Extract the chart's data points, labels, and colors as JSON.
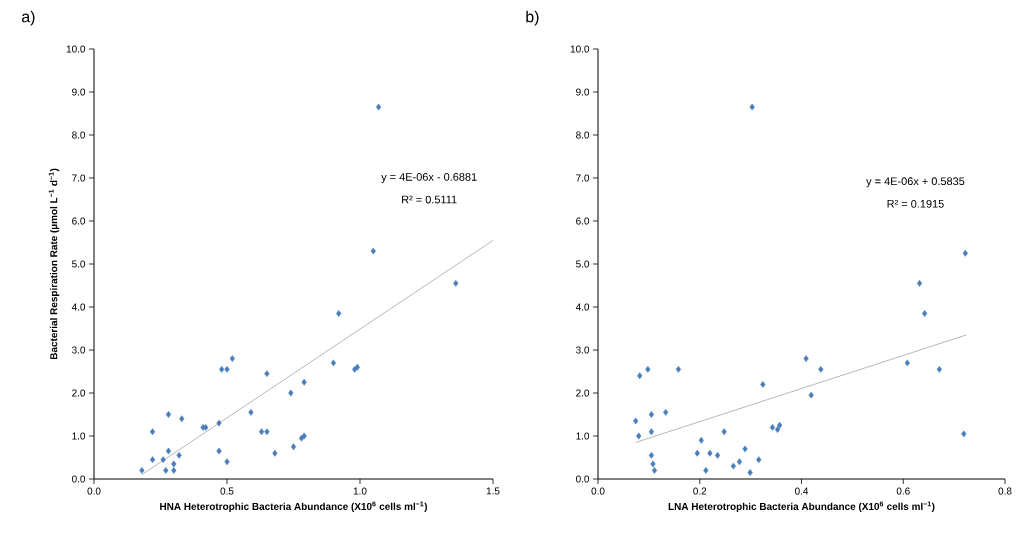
{
  "chart_data": [
    {
      "type": "scatter",
      "title": "a)",
      "xlabel": "HNA Heterotrophic Bacteria Abundance (X10$^{6}$ cells ml$^{−1}$)",
      "ylabel": "Bacterial Respiration Rate (µmol L$^{−1}$ d$^{−1}$)",
      "marker": "diamond",
      "xlim": [
        0,
        1.5
      ],
      "ylim": [
        0,
        10
      ],
      "xticks": [
        {
          "value": 0,
          "label": "0.0"
        },
        {
          "value": 0.5,
          "label": "0.5"
        },
        {
          "value": 1,
          "label": "1.0"
        },
        {
          "value": 1.5,
          "label": "1.5"
        }
      ],
      "yticks": [
        {
          "value": 0,
          "label": "0.0"
        },
        {
          "value": 1,
          "label": "1.0"
        },
        {
          "value": 2,
          "label": "2.0"
        },
        {
          "value": 3,
          "label": "3.0"
        },
        {
          "value": 4,
          "label": "4.0"
        },
        {
          "value": 5,
          "label": "5.0"
        },
        {
          "value": 6,
          "label": "6.0"
        },
        {
          "value": 7,
          "label": "7.0"
        },
        {
          "value": 8,
          "label": "8.0"
        },
        {
          "value": 9,
          "label": "9.0"
        },
        {
          "value": 10,
          "label": "10.0"
        }
      ],
      "annotations": [
        "y = 4E-06x - 0.6881",
        "R² = 0.5111"
      ],
      "series": [
        {
          "color": "#4a7ebb",
          "x": [
            0.18,
            0.22,
            0.22,
            0.26,
            0.27,
            0.28,
            0.28,
            0.3,
            0.3,
            0.32,
            0.33,
            0.41,
            0.42,
            0.47,
            0.47,
            0.48,
            0.5,
            0.5,
            0.52,
            0.59,
            0.63,
            0.65,
            0.65,
            0.68,
            0.74,
            0.75,
            0.78,
            0.79,
            0.79,
            0.9,
            0.92,
            0.98,
            0.99,
            1.36,
            1.05,
            1.07
          ],
          "values": [
            0.2,
            1.1,
            0.45,
            0.45,
            0.2,
            1.5,
            0.65,
            0.35,
            0.2,
            0.55,
            1.4,
            1.2,
            1.2,
            1.3,
            0.65,
            2.55,
            2.55,
            0.4,
            2.8,
            1.55,
            1.1,
            1.1,
            2.45,
            0.6,
            2.0,
            0.75,
            0.95,
            1.0,
            2.25,
            2.7,
            3.85,
            2.55,
            2.6,
            4.55,
            5.3,
            8.65
          ]
        },
        {
          "type": "line",
          "marker": "none",
          "color": "#888888",
          "x": [
            0.18,
            1.5
          ],
          "values": [
            0.1,
            5.55
          ]
        }
      ]
    },
    {
      "type": "scatter",
      "title": "b)",
      "xlabel": "LNA Heterotrophic Bacteria Abundance (X10$^{6}$ cells ml$^{−1}$)",
      "marker": "diamond",
      "xlim": [
        0,
        0.8
      ],
      "ylim": [
        0,
        10
      ],
      "xticks": [
        {
          "value": 0,
          "label": "0.0"
        },
        {
          "value": 0.2,
          "label": "0.2"
        },
        {
          "value": 0.4,
          "label": "0.4"
        },
        {
          "value": 0.6,
          "label": "0.6"
        },
        {
          "value": 0.8,
          "label": "0.8"
        }
      ],
      "yticks": [
        {
          "value": 0,
          "label": "0.0"
        },
        {
          "value": 1,
          "label": "1.0"
        },
        {
          "value": 2,
          "label": "2.0"
        },
        {
          "value": 3,
          "label": "3.0"
        },
        {
          "value": 4,
          "label": "4.0"
        },
        {
          "value": 5,
          "label": "5.0"
        },
        {
          "value": 6,
          "label": "6.0"
        },
        {
          "value": 7,
          "label": "7.0"
        },
        {
          "value": 8,
          "label": "8.0"
        },
        {
          "value": 9,
          "label": "9.0"
        },
        {
          "value": 10,
          "label": "10.0"
        }
      ],
      "annotations": [
        "y = 4E-06x + 0.5835",
        "R² = 0.1915"
      ],
      "series": [
        {
          "color": "#4a7ebb",
          "x": [
            0.074,
            0.082,
            0.08,
            0.098,
            0.105,
            0.105,
            0.105,
            0.108,
            0.111,
            0.133,
            0.158,
            0.195,
            0.203,
            0.212,
            0.22,
            0.235,
            0.248,
            0.266,
            0.278,
            0.289,
            0.299,
            0.316,
            0.324,
            0.343,
            0.353,
            0.357,
            0.409,
            0.419,
            0.438,
            0.608,
            0.632,
            0.642,
            0.671,
            0.719,
            0.303,
            0.722
          ],
          "values": [
            1.35,
            2.4,
            1.0,
            2.55,
            1.5,
            1.1,
            0.55,
            0.35,
            0.2,
            1.55,
            2.55,
            0.6,
            0.9,
            0.2,
            0.6,
            0.55,
            1.1,
            0.3,
            0.4,
            0.7,
            0.15,
            0.45,
            2.2,
            1.2,
            1.15,
            1.25,
            2.8,
            1.95,
            2.55,
            2.7,
            4.55,
            3.85,
            2.55,
            1.05,
            8.65,
            5.25
          ]
        },
        {
          "type": "line",
          "marker": "none",
          "color": "#888888",
          "x": [
            0.074,
            0.724
          ],
          "values": [
            0.85,
            3.35
          ]
        }
      ]
    }
  ]
}
